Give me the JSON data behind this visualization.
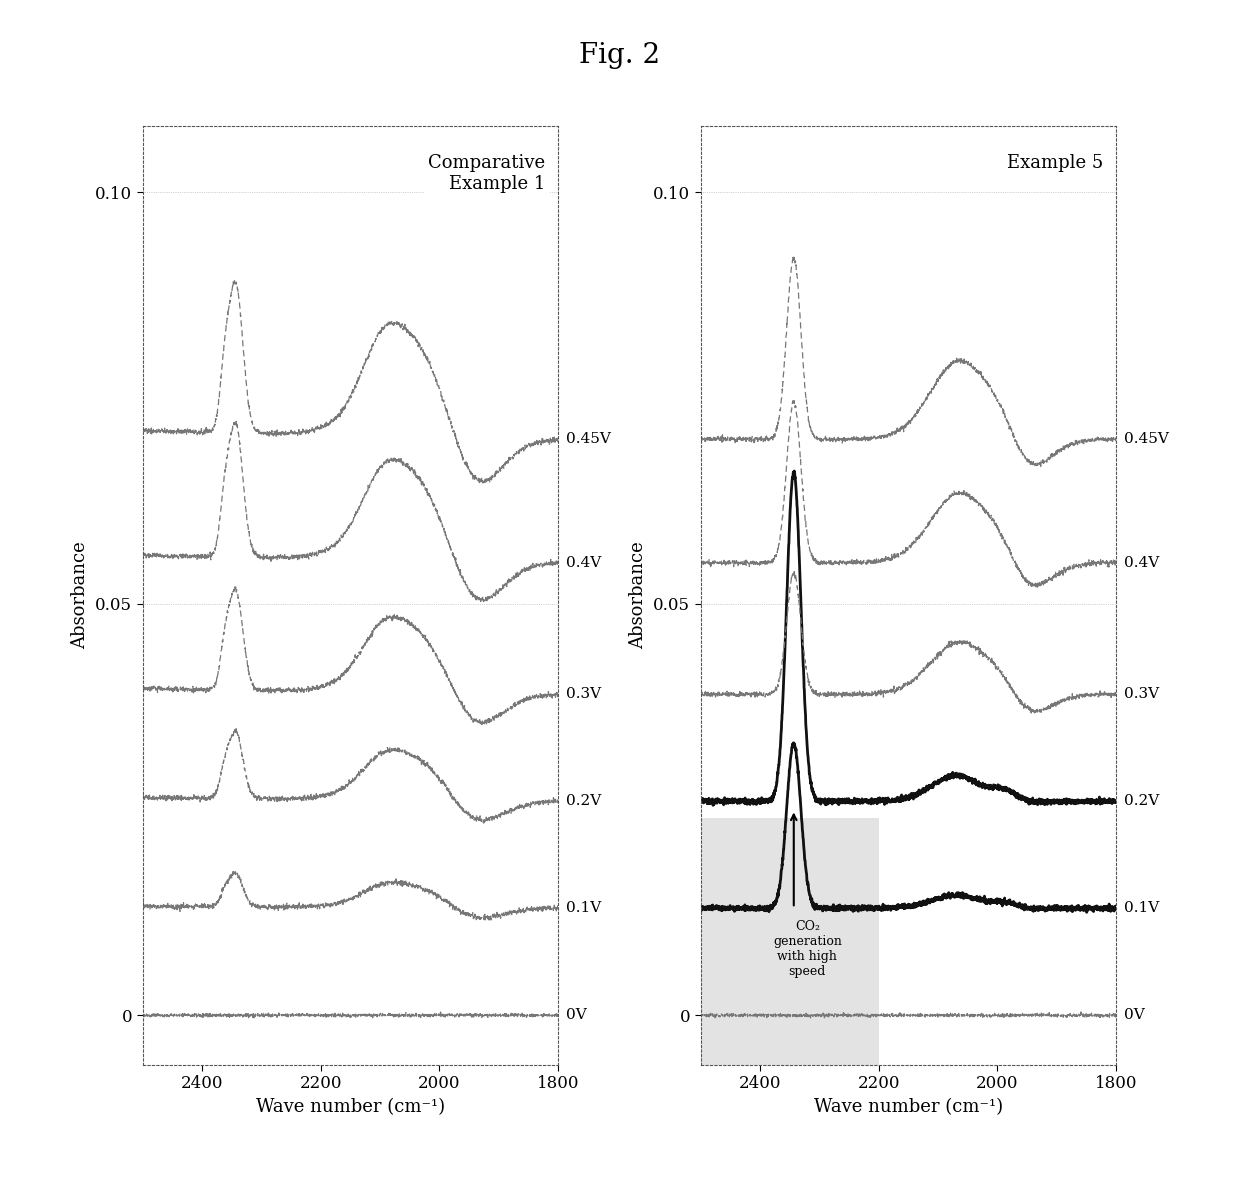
{
  "title": "Fig. 2",
  "panel1_label": "Comparative\nExample 1",
  "panel2_label": "Example 5",
  "xlabel": "Wave number (cm⁻¹)",
  "ylabel": "Absorbance",
  "voltage_labels": [
    "0V",
    "0.1V",
    "0.2V",
    "0.3V",
    "0.4V",
    "0.45V"
  ],
  "background_color": "#ffffff",
  "line_color_normal": "#777777",
  "line_color_bold": "#111111",
  "annotation_text": "CO₂\ngeneration\nwith high\nspeed",
  "annotation_box_color": "#d8d8d8",
  "offsets": [
    0.0,
    0.013,
    0.026,
    0.039,
    0.055,
    0.07
  ],
  "voltages": [
    0.0,
    0.1,
    0.2,
    0.3,
    0.4,
    0.45
  ]
}
